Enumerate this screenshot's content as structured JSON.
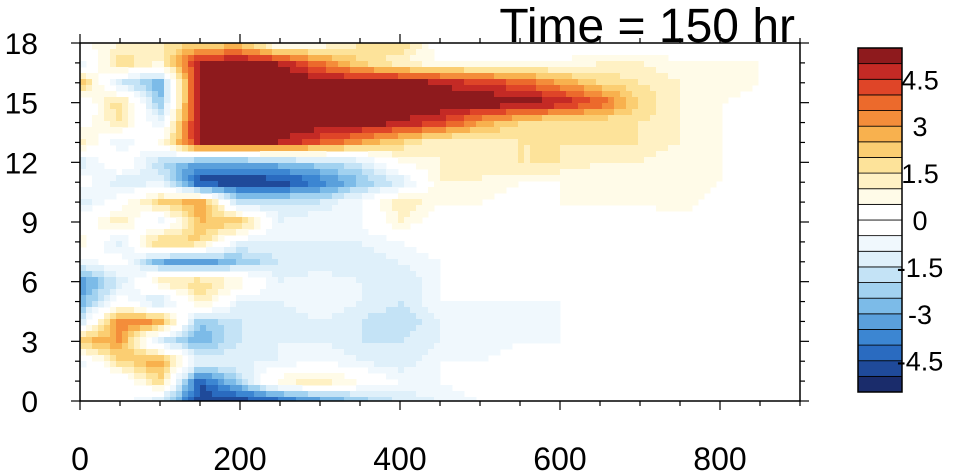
{
  "chart_data": {
    "type": "heatmap",
    "title": "Time = 150 hr",
    "xlabel": "",
    "ylabel": "",
    "xlim": [
      0,
      900
    ],
    "ylim": [
      0,
      18
    ],
    "x_ticks": [
      0,
      200,
      400,
      600,
      800
    ],
    "y_ticks": [
      0,
      3,
      6,
      9,
      12,
      15,
      18
    ],
    "colorbar": {
      "levels": [
        -5.5,
        -5,
        -4.5,
        -4,
        -3.5,
        -3,
        -2.5,
        -2,
        -1.5,
        -1,
        -0.5,
        0,
        0.5,
        1,
        1.5,
        2,
        2.5,
        3,
        3.5,
        4,
        4.5,
        5,
        5.5
      ],
      "tick_labels": [
        "4.5",
        "3",
        "1.5",
        "0",
        "-1.5",
        "-3",
        "-4.5"
      ],
      "tick_values": [
        4.5,
        3,
        1.5,
        0,
        -1.5,
        -3,
        -4.5
      ],
      "colors": [
        "#1a2c6b",
        "#1f4a9a",
        "#2a6bc0",
        "#3c86d2",
        "#5aa0dc",
        "#7cbbe8",
        "#a2d2f0",
        "#c4e3f6",
        "#dff0fa",
        "#f0f8fd",
        "#ffffff",
        "#ffffff",
        "#fffbe8",
        "#fff1c4",
        "#fde39a",
        "#fbce72",
        "#f8b14e",
        "#f48d3a",
        "#ec6a2c",
        "#df4528",
        "#c42a25",
        "#8e1a1d"
      ]
    },
    "value_grid": {
      "x": [
        0,
        50,
        100,
        150,
        200,
        250,
        300,
        350,
        400,
        450,
        500,
        550,
        600,
        650,
        700,
        750,
        800,
        850,
        900
      ],
      "y": [
        0,
        1,
        2,
        3,
        4,
        5,
        6,
        7,
        8,
        9,
        10,
        11,
        12,
        13,
        14,
        15,
        16,
        17,
        18
      ],
      "z": [
        [
          0,
          0,
          -1.5,
          -5,
          -5,
          -4.5,
          -3.5,
          -2.5,
          -1.5,
          -1,
          -0.5,
          -0.5,
          0,
          0,
          0,
          0,
          0,
          0,
          0
        ],
        [
          0,
          -0.5,
          2,
          -4.5,
          -2,
          1,
          1.5,
          0.5,
          -0.5,
          -0.5,
          0,
          0,
          0,
          0,
          0,
          0,
          0,
          0,
          0
        ],
        [
          -1,
          2,
          3,
          -1,
          -1,
          -1,
          -0.5,
          -1,
          -1.5,
          -0.5,
          -0.5,
          0,
          0,
          0,
          0,
          0,
          0,
          0,
          0
        ],
        [
          2.5,
          3,
          -1.5,
          -3,
          -1.5,
          -1,
          -1,
          -1.5,
          -1.5,
          -1,
          -1,
          -0.5,
          -0.5,
          0,
          0,
          0,
          0,
          0,
          0
        ],
        [
          -1.5,
          3.5,
          3,
          -2.5,
          -1.5,
          -1.5,
          -1,
          -1.5,
          -2,
          -1,
          -0.5,
          -1,
          -0.5,
          -0.5,
          0,
          0,
          0,
          0,
          0
        ],
        [
          -3,
          0,
          -2,
          1.5,
          -1,
          -1,
          -0.5,
          -1,
          -1.5,
          -0.5,
          -0.5,
          -0.5,
          -0.5,
          0,
          0,
          0,
          0,
          0,
          0
        ],
        [
          -3.5,
          -1.5,
          1.5,
          2,
          1,
          -1,
          -0.5,
          -1,
          -1.5,
          -0.5,
          0,
          0,
          0,
          0.5,
          0,
          0,
          0,
          0,
          0
        ],
        [
          -1,
          0,
          -3,
          -3.5,
          -2.5,
          -1.5,
          -1.5,
          -1.5,
          -1,
          -0.5,
          -0.5,
          0,
          0,
          0,
          0,
          0,
          0,
          0,
          0
        ],
        [
          1,
          -1.5,
          2.5,
          2,
          -1,
          -1,
          -1,
          -1,
          -0.5,
          0,
          0,
          0,
          0,
          0,
          0,
          0,
          0,
          0,
          0
        ],
        [
          0,
          1.5,
          -1,
          2.5,
          2.5,
          -1,
          -0.5,
          -0.5,
          1,
          0,
          0,
          0,
          0,
          0,
          0,
          0,
          0,
          0,
          0
        ],
        [
          -1.5,
          0,
          2,
          3,
          -2,
          -1.5,
          -1.5,
          -0.5,
          1.5,
          0.5,
          0.5,
          0,
          0.5,
          0.5,
          0.5,
          1,
          0,
          0,
          0
        ],
        [
          0,
          -1.5,
          -1,
          -5,
          -5,
          -5,
          -4,
          -2.5,
          -1.5,
          1,
          1,
          0.5,
          0.5,
          0.5,
          1,
          1,
          0.5,
          0,
          0
        ],
        [
          -1.5,
          0.5,
          -2,
          -3,
          -3,
          -2.5,
          -2,
          -1.5,
          0.5,
          1,
          1,
          1.5,
          1.5,
          1,
          1,
          0.5,
          0.5,
          0,
          0
        ],
        [
          1.5,
          -1,
          0.5,
          5,
          5,
          5,
          4,
          3,
          2,
          1,
          1,
          1.5,
          1.5,
          1.5,
          1.5,
          1,
          0.5,
          0,
          0
        ],
        [
          0,
          1.5,
          -1,
          5.5,
          5.5,
          5.5,
          5.5,
          5.5,
          5,
          4.5,
          3,
          2,
          1.5,
          1.5,
          1.5,
          1,
          0.5,
          0,
          0
        ],
        [
          -0.5,
          2,
          -2.5,
          5.5,
          5.5,
          5.5,
          5.5,
          5.5,
          5.5,
          5.5,
          5.5,
          5.5,
          5,
          4,
          2,
          1,
          0.5,
          0,
          0
        ],
        [
          2.5,
          -1.5,
          -3,
          5.5,
          5.5,
          5.5,
          5.5,
          5.5,
          5.5,
          5,
          4.5,
          4,
          3,
          2,
          1.5,
          1,
          1,
          0.5,
          0
        ],
        [
          -1,
          2,
          1,
          5,
          5.5,
          5,
          3.5,
          2,
          1,
          0.5,
          0.5,
          0.5,
          0.5,
          1,
          1,
          0.5,
          0.5,
          0.5,
          0
        ],
        [
          0.5,
          1,
          1.5,
          2,
          2,
          0,
          0.5,
          1.5,
          2,
          0,
          0,
          0,
          0,
          0,
          0,
          0,
          0,
          0,
          0
        ]
      ]
    },
    "grid": false,
    "legend": "colorbar-right"
  }
}
